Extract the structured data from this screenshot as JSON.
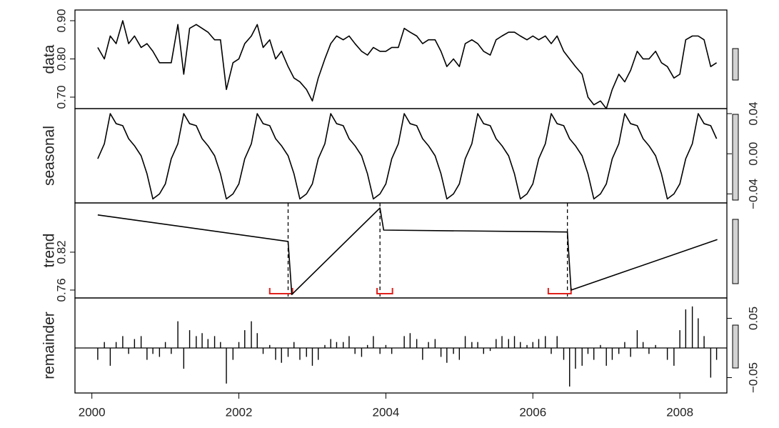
{
  "chart_data": [
    {
      "type": "line",
      "ylabel": "data",
      "yaxis": "left",
      "color": "#000000",
      "xlim": [
        1999.77,
        2008.64
      ],
      "ylim": [
        0.67,
        0.928
      ],
      "yticks": [
        {
          "value": 0.7,
          "label": "0.70"
        },
        {
          "value": 0.8,
          "label": "0.80"
        },
        {
          "value": 0.9,
          "label": "0.90"
        }
      ],
      "x": [
        2000.08,
        2000.17,
        2000.25,
        2000.33,
        2000.42,
        2000.5,
        2000.58,
        2000.67,
        2000.75,
        2000.83,
        2000.92,
        2001.0,
        2001.08,
        2001.17,
        2001.25,
        2001.33,
        2001.42,
        2001.5,
        2001.58,
        2001.67,
        2001.75,
        2001.83,
        2001.92,
        2002.0,
        2002.08,
        2002.17,
        2002.25,
        2002.33,
        2002.42,
        2002.5,
        2002.58,
        2002.67,
        2002.75,
        2002.83,
        2002.92,
        2003.0,
        2003.08,
        2003.17,
        2003.25,
        2003.33,
        2003.42,
        2003.5,
        2003.58,
        2003.67,
        2003.75,
        2003.83,
        2003.92,
        2004.0,
        2004.08,
        2004.17,
        2004.25,
        2004.33,
        2004.42,
        2004.5,
        2004.58,
        2004.67,
        2004.75,
        2004.83,
        2004.92,
        2005.0,
        2005.08,
        2005.17,
        2005.25,
        2005.33,
        2005.42,
        2005.5,
        2005.58,
        2005.67,
        2005.75,
        2005.83,
        2005.92,
        2006.0,
        2006.08,
        2006.17,
        2006.25,
        2006.33,
        2006.42,
        2006.5,
        2006.58,
        2006.67,
        2006.75,
        2006.83,
        2006.92,
        2007.0,
        2007.08,
        2007.17,
        2007.25,
        2007.33,
        2007.42,
        2007.5,
        2007.58,
        2007.67,
        2007.75,
        2007.83,
        2007.92,
        2008.0,
        2008.08,
        2008.17,
        2008.25,
        2008.33,
        2008.42,
        2008.5
      ],
      "values": [
        0.83,
        0.8,
        0.86,
        0.84,
        0.9,
        0.84,
        0.86,
        0.83,
        0.84,
        0.82,
        0.79,
        0.79,
        0.79,
        0.89,
        0.76,
        0.88,
        0.89,
        0.88,
        0.87,
        0.85,
        0.85,
        0.72,
        0.79,
        0.8,
        0.84,
        0.86,
        0.89,
        0.83,
        0.85,
        0.8,
        0.82,
        0.78,
        0.75,
        0.74,
        0.72,
        0.69,
        0.75,
        0.8,
        0.84,
        0.86,
        0.85,
        0.86,
        0.84,
        0.82,
        0.81,
        0.83,
        0.82,
        0.82,
        0.83,
        0.83,
        0.88,
        0.87,
        0.86,
        0.84,
        0.85,
        0.85,
        0.82,
        0.78,
        0.8,
        0.78,
        0.84,
        0.85,
        0.84,
        0.82,
        0.81,
        0.85,
        0.86,
        0.87,
        0.87,
        0.86,
        0.85,
        0.86,
        0.85,
        0.86,
        0.84,
        0.86,
        0.82,
        0.8,
        0.78,
        0.76,
        0.7,
        0.68,
        0.69,
        0.67,
        0.72,
        0.76,
        0.74,
        0.77,
        0.82,
        0.8,
        0.8,
        0.82,
        0.79,
        0.78,
        0.75,
        0.76,
        0.85,
        0.86,
        0.86,
        0.85,
        0.78,
        0.79
      ]
    },
    {
      "type": "line",
      "ylabel": "seasonal",
      "yaxis": "right",
      "color": "#000000",
      "xlim": [
        1999.77,
        2008.64
      ],
      "ylim": [
        -0.049,
        0.045
      ],
      "yticks": [
        {
          "value": -0.04,
          "label": "−0.04"
        },
        {
          "value": 0,
          "label": "0.00"
        },
        0.04
      ],
      "x": [
        2000.08,
        2000.17,
        2000.25,
        2000.33,
        2000.42,
        2000.5,
        2000.58,
        2000.67,
        2000.75,
        2000.83,
        2000.92,
        2001.0,
        2001.08,
        2001.17,
        2001.25,
        2001.33,
        2001.42,
        2001.5,
        2001.58,
        2001.67,
        2001.75,
        2001.83,
        2001.92,
        2002.0,
        2002.08,
        2002.17,
        2002.25,
        2002.33,
        2002.42,
        2002.5,
        2002.58,
        2002.67,
        2002.75,
        2002.83,
        2002.92,
        2003.0,
        2003.08,
        2003.17,
        2003.25,
        2003.33,
        2003.42,
        2003.5,
        2003.58,
        2003.67,
        2003.75,
        2003.83,
        2003.92,
        2004.0,
        2004.08,
        2004.17,
        2004.25,
        2004.33,
        2004.42,
        2004.5,
        2004.58,
        2004.67,
        2004.75,
        2004.83,
        2004.92,
        2005.0,
        2005.08,
        2005.17,
        2005.25,
        2005.33,
        2005.42,
        2005.5,
        2005.58,
        2005.67,
        2005.75,
        2005.83,
        2005.92,
        2006.0,
        2006.08,
        2006.17,
        2006.25,
        2006.33,
        2006.42,
        2006.5,
        2006.58,
        2006.67,
        2006.75,
        2006.83,
        2006.92,
        2007.0,
        2007.08,
        2007.17,
        2007.25,
        2007.33,
        2007.42,
        2007.5,
        2007.58,
        2007.67,
        2007.75,
        2007.83,
        2007.92,
        2008.0,
        2008.08,
        2008.17,
        2008.25,
        2008.33,
        2008.42,
        2008.5
      ],
      "values": [
        -0.005,
        0.01,
        0.04,
        0.03,
        0.028,
        0.015,
        0.008,
        -0.002,
        -0.02,
        -0.045,
        -0.04,
        -0.03,
        -0.005,
        0.01,
        0.04,
        0.03,
        0.028,
        0.015,
        0.008,
        -0.002,
        -0.02,
        -0.045,
        -0.04,
        -0.03,
        -0.005,
        0.01,
        0.04,
        0.03,
        0.028,
        0.015,
        0.008,
        -0.002,
        -0.02,
        -0.045,
        -0.04,
        -0.03,
        -0.005,
        0.01,
        0.04,
        0.03,
        0.028,
        0.015,
        0.008,
        -0.002,
        -0.02,
        -0.045,
        -0.04,
        -0.03,
        -0.005,
        0.01,
        0.04,
        0.03,
        0.028,
        0.015,
        0.008,
        -0.002,
        -0.02,
        -0.045,
        -0.04,
        -0.03,
        -0.005,
        0.01,
        0.04,
        0.03,
        0.028,
        0.015,
        0.008,
        -0.002,
        -0.02,
        -0.045,
        -0.04,
        -0.03,
        -0.005,
        0.01,
        0.04,
        0.03,
        0.028,
        0.015,
        0.008,
        -0.002,
        -0.02,
        -0.045,
        -0.04,
        -0.03,
        -0.005,
        0.01,
        0.04,
        0.03,
        0.028,
        0.015,
        0.008,
        -0.002,
        -0.02,
        -0.045,
        -0.04,
        -0.03,
        -0.005,
        0.01,
        0.04,
        0.03,
        0.028,
        0.015
      ]
    },
    {
      "type": "line",
      "ylabel": "trend",
      "yaxis": "left",
      "color": "#000000",
      "xlim": [
        1999.77,
        2008.64
      ],
      "ylim": [
        0.7475,
        0.898
      ],
      "yticks": [
        0.76,
        0.82
      ],
      "x": [
        2000.08,
        2002.67,
        2002.72,
        2003.92,
        2003.97,
        2006.47,
        2006.52,
        2008.51
      ],
      "values": [
        0.879,
        0.837,
        0.753,
        0.89,
        0.855,
        0.852,
        0.76,
        0.84
      ],
      "breakpoints": [
        2002.67,
        2003.92,
        2006.47
      ],
      "breakpoint_intervals": [
        [
          2002.42,
          2002.73
        ],
        [
          2003.88,
          2004.09
        ],
        [
          2006.21,
          2006.52
        ]
      ],
      "interval_color": "#e0201b"
    },
    {
      "type": "bar",
      "ylabel": "remainder",
      "yaxis": "right",
      "color": "#000000",
      "xlim": [
        1999.77,
        2008.64
      ],
      "ylim": [
        -0.0759,
        0.0843
      ],
      "yticks": [
        {
          "value": -0.05,
          "label": "−0.05"
        },
        0.05
      ],
      "xticks": [
        2000,
        2002,
        2004,
        2006,
        2008
      ],
      "x": [
        2000.08,
        2000.17,
        2000.25,
        2000.33,
        2000.42,
        2000.5,
        2000.58,
        2000.67,
        2000.75,
        2000.83,
        2000.92,
        2001.0,
        2001.08,
        2001.17,
        2001.25,
        2001.33,
        2001.42,
        2001.5,
        2001.58,
        2001.67,
        2001.75,
        2001.83,
        2001.92,
        2002.0,
        2002.08,
        2002.17,
        2002.25,
        2002.33,
        2002.42,
        2002.5,
        2002.58,
        2002.67,
        2002.75,
        2002.83,
        2002.92,
        2003.0,
        2003.08,
        2003.17,
        2003.25,
        2003.33,
        2003.42,
        2003.5,
        2003.58,
        2003.67,
        2003.75,
        2003.83,
        2003.92,
        2004.0,
        2004.08,
        2004.17,
        2004.25,
        2004.33,
        2004.42,
        2004.5,
        2004.58,
        2004.67,
        2004.75,
        2004.83,
        2004.92,
        2005.0,
        2005.08,
        2005.17,
        2005.25,
        2005.33,
        2005.42,
        2005.5,
        2005.58,
        2005.67,
        2005.75,
        2005.83,
        2005.92,
        2006.0,
        2006.08,
        2006.17,
        2006.25,
        2006.33,
        2006.42,
        2006.5,
        2006.58,
        2006.67,
        2006.75,
        2006.83,
        2006.92,
        2007.0,
        2007.08,
        2007.17,
        2007.25,
        2007.33,
        2007.42,
        2007.5,
        2007.58,
        2007.67,
        2007.75,
        2007.83,
        2007.92,
        2008.0,
        2008.08,
        2008.17,
        2008.25,
        2008.33,
        2008.42,
        2008.5
      ],
      "values": [
        -0.02,
        0.01,
        -0.03,
        0.01,
        0.02,
        -0.01,
        0.015,
        0.02,
        -0.02,
        -0.01,
        -0.015,
        0.01,
        -0.01,
        0.045,
        -0.035,
        0.03,
        0.02,
        0.025,
        0.015,
        0.02,
        0.01,
        -0.06,
        -0.02,
        0.01,
        0.03,
        0.045,
        0.025,
        -0.01,
        0.005,
        -0.02,
        -0.025,
        -0.015,
        0.01,
        -0.02,
        -0.015,
        -0.03,
        -0.02,
        0.005,
        0.015,
        0.01,
        0.01,
        0.02,
        -0.01,
        -0.015,
        0.005,
        0.02,
        -0.01,
        0.005,
        -0.01,
        0,
        0.02,
        0.025,
        0.015,
        -0.02,
        0.01,
        0.015,
        -0.015,
        -0.025,
        -0.01,
        -0.02,
        0.02,
        0.01,
        0.01,
        -0.01,
        -0.005,
        0.015,
        0.02,
        0.015,
        0.02,
        0.01,
        0.005,
        0.01,
        0.015,
        0.02,
        -0.01,
        0.02,
        -0.02,
        -0.065,
        -0.035,
        -0.03,
        -0.01,
        -0.02,
        0.005,
        -0.03,
        -0.02,
        -0.01,
        0.01,
        -0.015,
        0.03,
        0.01,
        -0.01,
        0.005,
        0,
        -0.02,
        -0.03,
        0.03,
        0.065,
        0.07,
        0.05,
        0.02,
        -0.05,
        -0.02
      ]
    }
  ]
}
